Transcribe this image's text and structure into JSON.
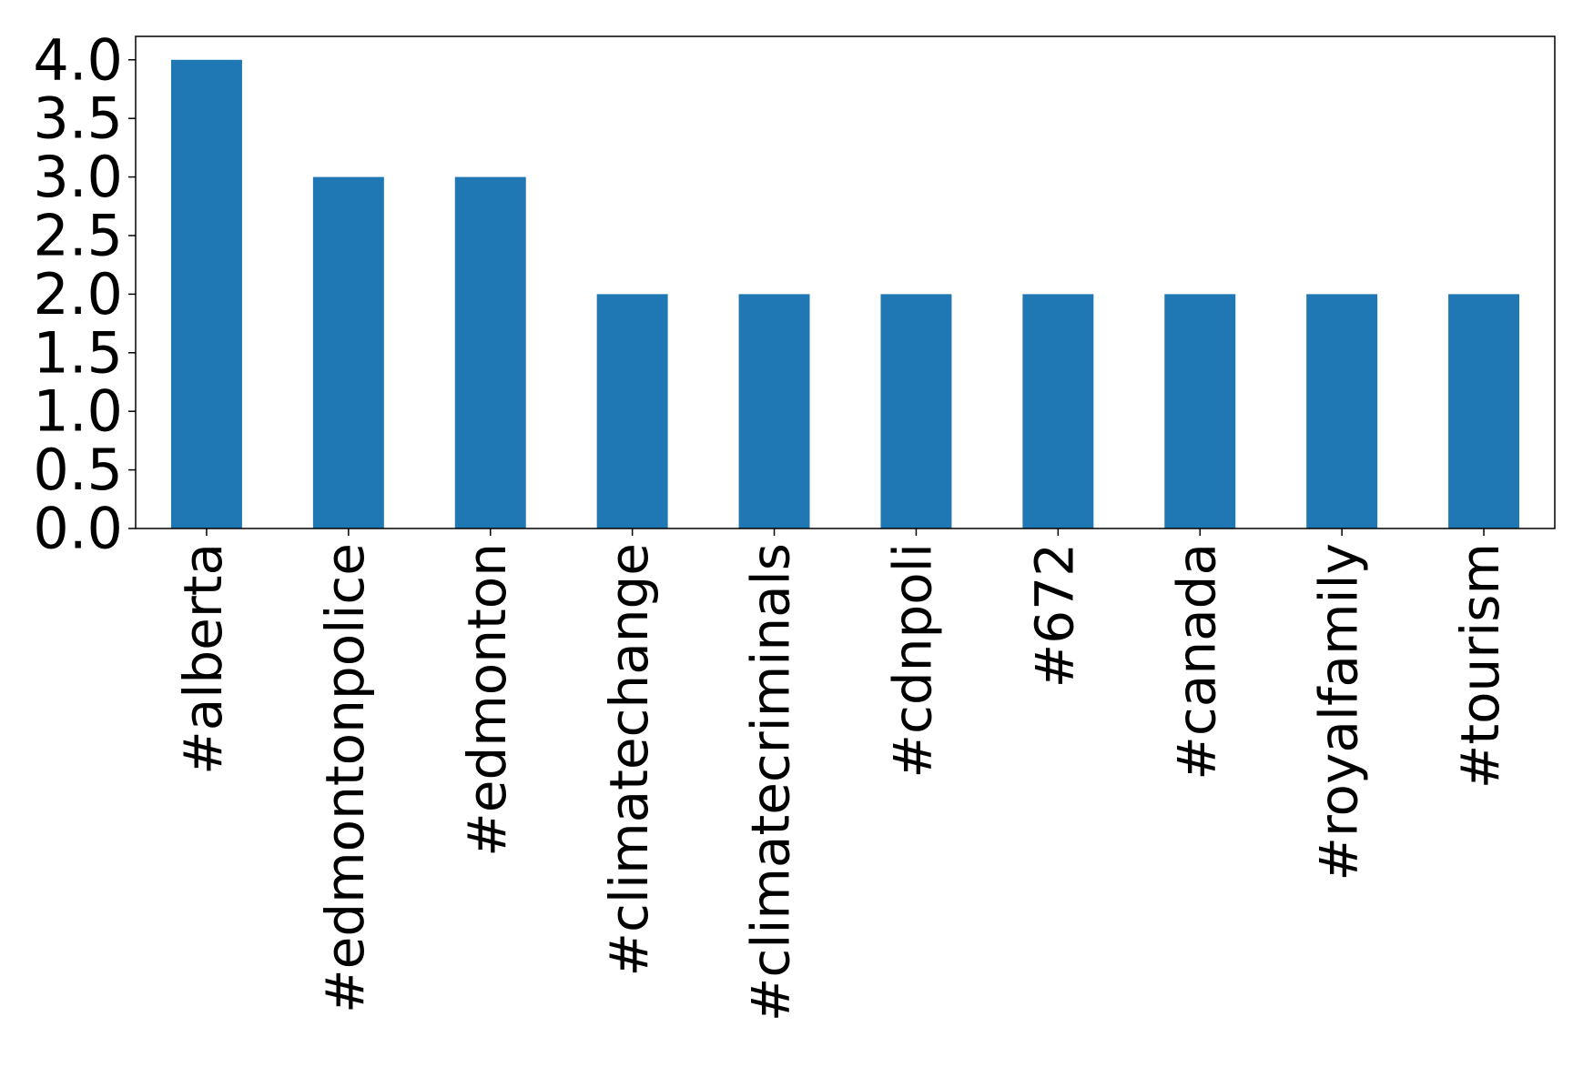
{
  "chart_data": {
    "type": "bar",
    "categories": [
      "#alberta",
      "#edmontonpolice",
      "#edmonton",
      "#climatechange",
      "#climatecriminals",
      "#cdnpoli",
      "#672",
      "#canada",
      "#royalfamily",
      "#tourism"
    ],
    "values": [
      4,
      3,
      3,
      2,
      2,
      2,
      2,
      2,
      2,
      2
    ],
    "color": "#1f77b4",
    "ylim": [
      0,
      4.2
    ],
    "yticks": [
      {
        "value": 0,
        "label": "0.0"
      },
      0.5,
      {
        "value": 1,
        "label": "1.0"
      },
      1.5,
      {
        "value": 2,
        "label": "2.0"
      },
      2.5,
      {
        "value": 3,
        "label": "3.0"
      },
      3.5,
      {
        "value": 4,
        "label": "4.0"
      }
    ],
    "grid": false
  }
}
